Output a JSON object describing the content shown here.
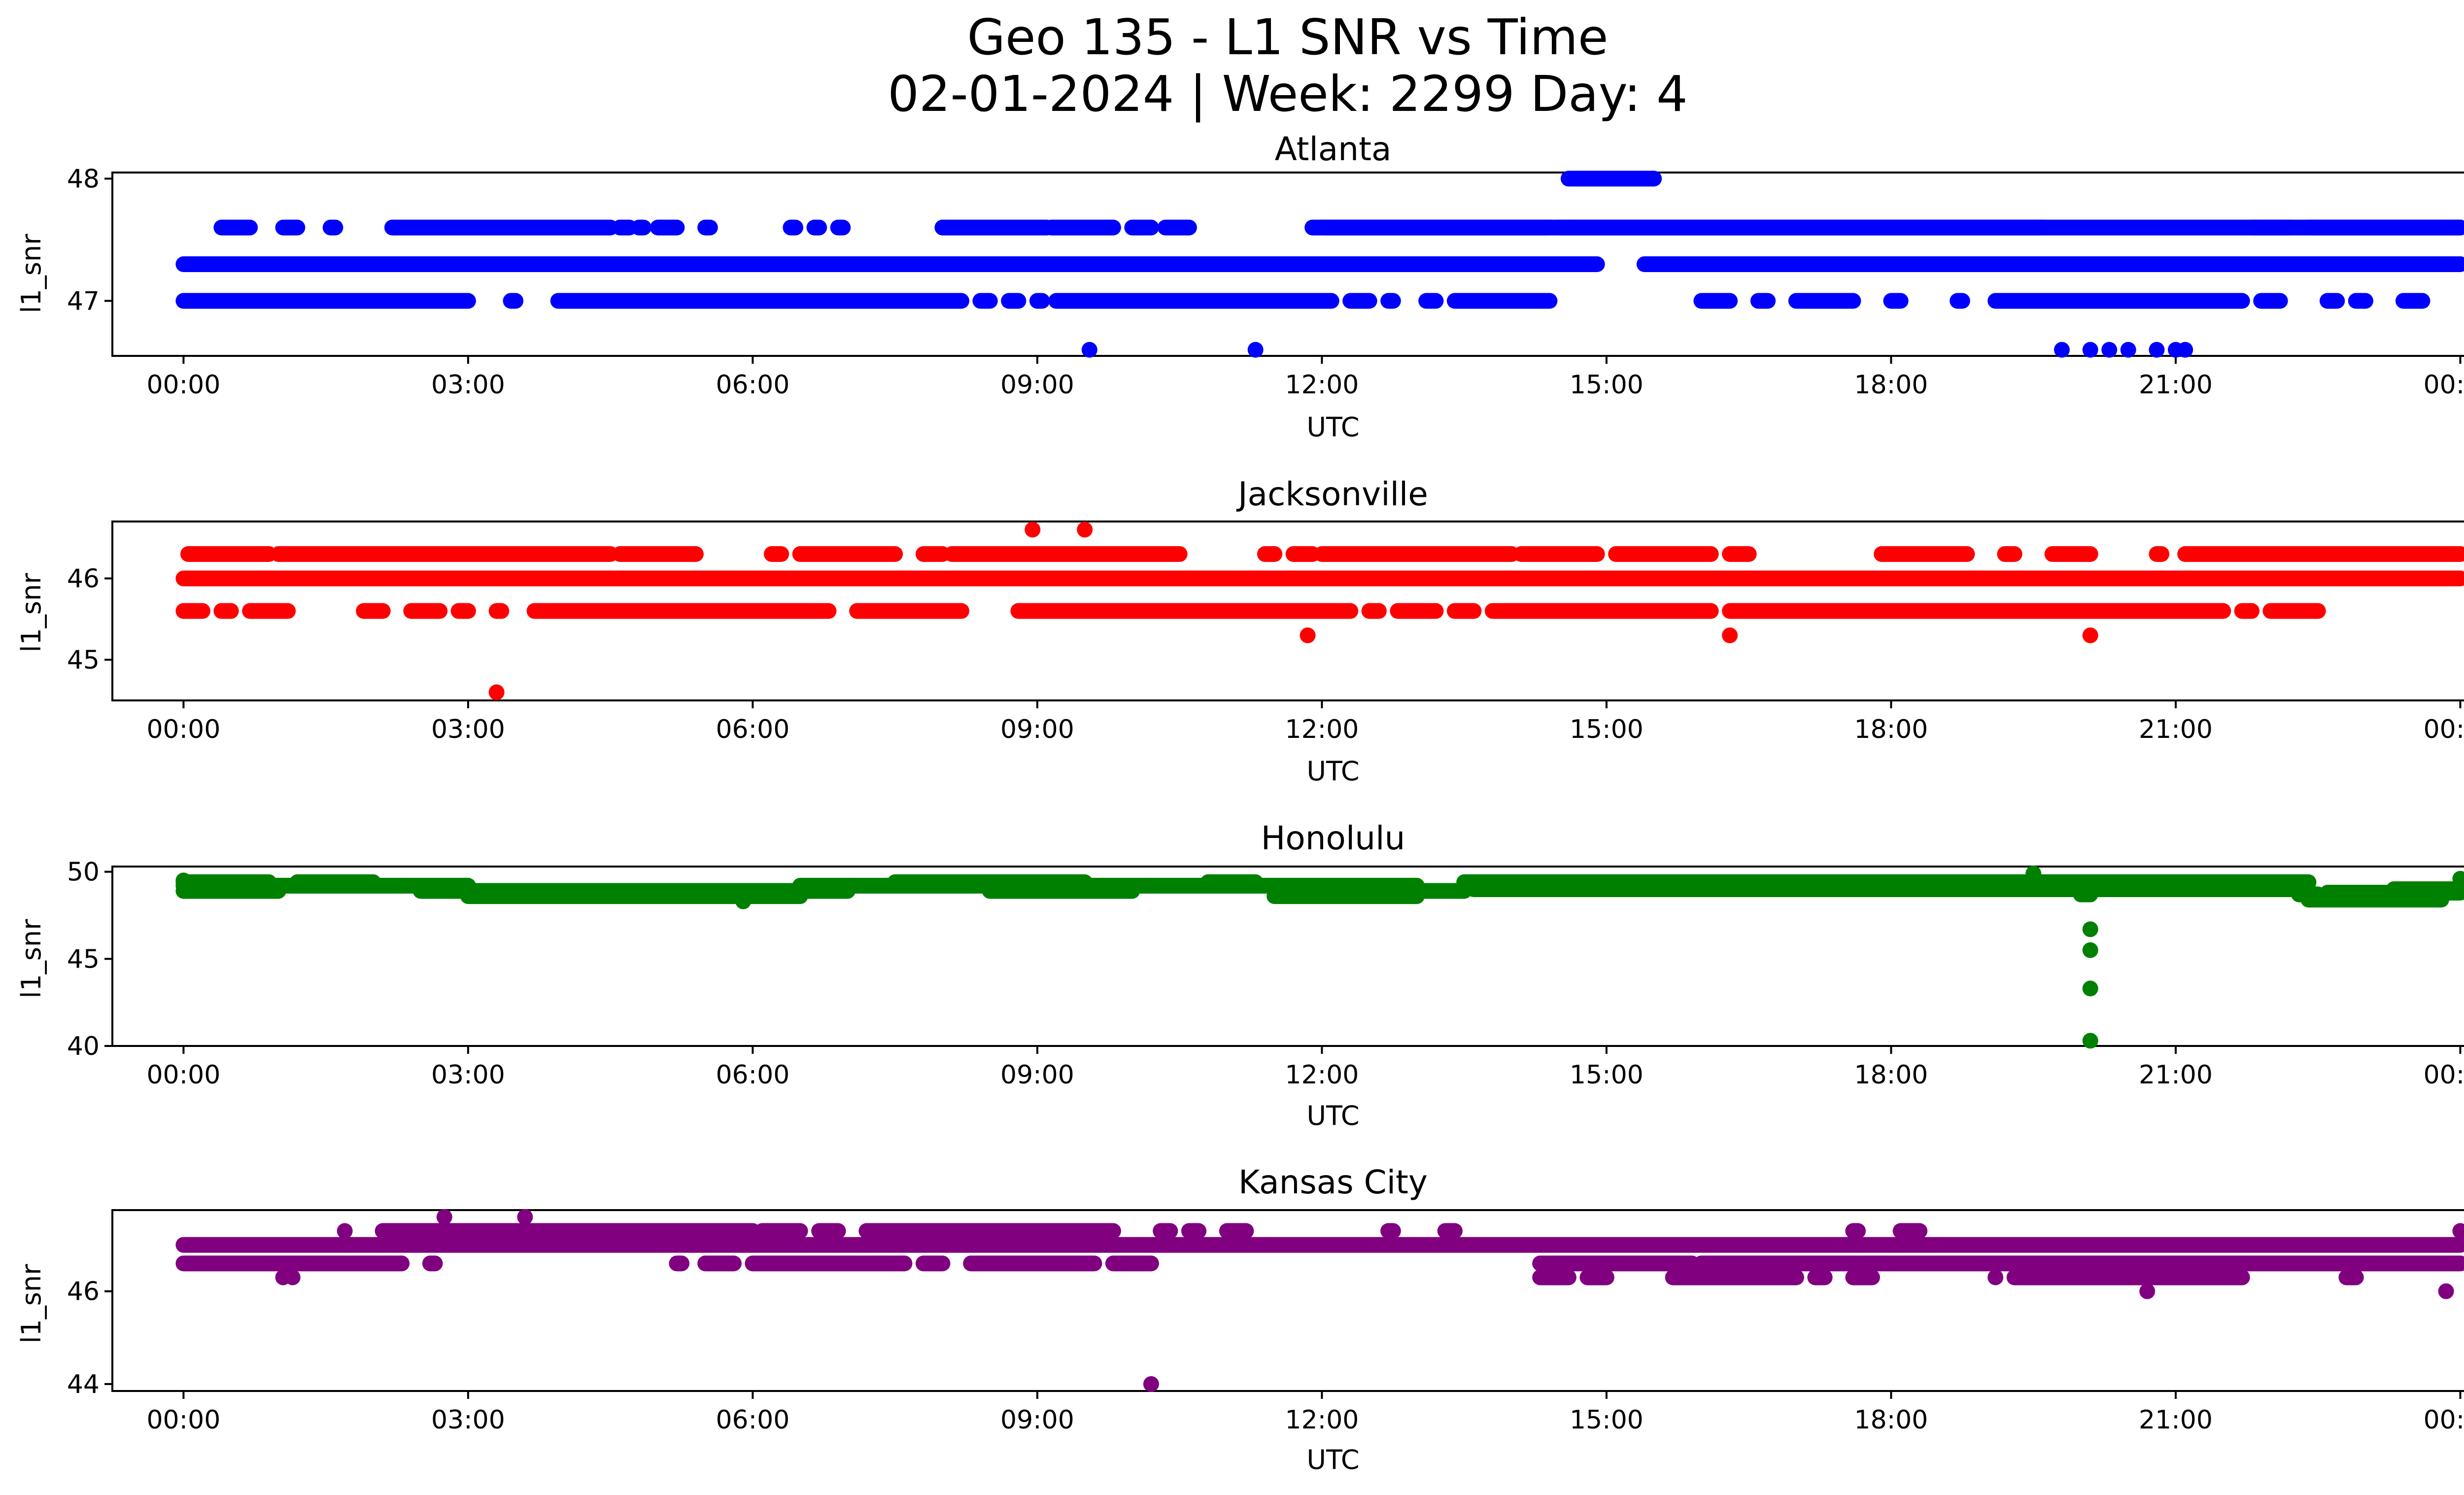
{
  "figure": {
    "title_line1": "Geo 135 - L1 SNR vs Time",
    "title_line2": "02-01-2024 | Week: 2299 Day: 4"
  },
  "chart_data": [
    {
      "type": "scatter",
      "title": "Atlanta",
      "xlabel": "UTC",
      "ylabel": "l1_snr",
      "color": "#0000ff",
      "xlim_hours": [
        -0.75,
        25.0
      ],
      "ylim": [
        46.55,
        48.05
      ],
      "x_ticks": [
        "00:00",
        "03:00",
        "06:00",
        "09:00",
        "12:00",
        "15:00",
        "18:00",
        "21:00",
        "00:00"
      ],
      "y_ticks": [
        47,
        48
      ],
      "bands": [
        {
          "y": 47.3,
          "segments": [
            [
              0.0,
              14.9
            ],
            [
              15.4,
              24.0
            ]
          ]
        },
        {
          "y": 47.6,
          "segments": [
            [
              0.4,
              0.7
            ],
            [
              1.05,
              1.2
            ],
            [
              1.55,
              1.6
            ],
            [
              2.2,
              4.5
            ],
            [
              4.6,
              4.7
            ],
            [
              4.8,
              4.85
            ],
            [
              5.0,
              5.2
            ],
            [
              5.5,
              5.55
            ],
            [
              6.4,
              6.45
            ],
            [
              6.65,
              6.7
            ],
            [
              6.9,
              6.95
            ],
            [
              8.0,
              9.1
            ],
            [
              9.15,
              9.8
            ],
            [
              10.0,
              10.2
            ],
            [
              10.35,
              10.6
            ],
            [
              11.9,
              24.0
            ]
          ]
        },
        {
          "y": 47.6,
          "segments": [
            [
              12.0,
              14.4
            ],
            [
              14.5,
              19.6
            ],
            [
              21.8,
              22.2
            ],
            [
              22.4,
              24.0
            ]
          ]
        },
        {
          "y": 47.0,
          "segments": [
            [
              0.0,
              3.0
            ],
            [
              3.45,
              3.5
            ],
            [
              3.95,
              8.2
            ],
            [
              8.4,
              8.5
            ],
            [
              8.7,
              8.8
            ],
            [
              9.0,
              9.05
            ],
            [
              9.2,
              12.1
            ],
            [
              12.3,
              12.5
            ],
            [
              12.7,
              12.75
            ],
            [
              13.1,
              13.2
            ],
            [
              13.4,
              14.4
            ],
            [
              16.0,
              16.3
            ],
            [
              16.6,
              16.7
            ],
            [
              17.0,
              17.6
            ],
            [
              18.0,
              18.1
            ],
            [
              18.7,
              18.75
            ],
            [
              19.1,
              21.7
            ],
            [
              21.9,
              22.1
            ],
            [
              22.6,
              22.7
            ],
            [
              22.9,
              23.0
            ],
            [
              23.4,
              23.6
            ]
          ]
        },
        {
          "y": 48.0,
          "segments": [
            [
              14.6,
              15.5
            ]
          ]
        }
      ],
      "points": [
        [
          9.55,
          46.6
        ],
        [
          11.3,
          46.6
        ],
        [
          19.8,
          46.6
        ],
        [
          20.1,
          46.6
        ],
        [
          20.3,
          46.6
        ],
        [
          20.5,
          46.6
        ],
        [
          20.8,
          46.6
        ],
        [
          21.0,
          46.6
        ],
        [
          21.1,
          46.6
        ]
      ]
    },
    {
      "type": "scatter",
      "title": "Jacksonville",
      "xlabel": "UTC",
      "ylabel": "l1_snr",
      "color": "#ff0000",
      "xlim_hours": [
        -0.75,
        25.0
      ],
      "ylim": [
        44.5,
        46.7
      ],
      "x_ticks": [
        "00:00",
        "03:00",
        "06:00",
        "09:00",
        "12:00",
        "15:00",
        "18:00",
        "21:00",
        "00:00"
      ],
      "y_ticks": [
        45,
        46
      ],
      "bands": [
        {
          "y": 46.0,
          "segments": [
            [
              0.0,
              24.0
            ]
          ]
        },
        {
          "y": 46.3,
          "segments": [
            [
              0.05,
              0.9
            ],
            [
              1.0,
              4.5
            ],
            [
              4.6,
              5.4
            ],
            [
              6.2,
              6.3
            ],
            [
              6.5,
              7.5
            ],
            [
              7.8,
              8.0
            ],
            [
              8.1,
              10.5
            ],
            [
              11.4,
              11.5
            ],
            [
              11.7,
              11.9
            ],
            [
              12.0,
              14.0
            ],
            [
              14.1,
              14.9
            ],
            [
              15.1,
              16.1
            ],
            [
              16.3,
              16.5
            ],
            [
              17.9,
              18.8
            ],
            [
              19.2,
              19.3
            ],
            [
              19.7,
              20.1
            ],
            [
              20.8,
              20.85
            ],
            [
              21.1,
              24.0
            ]
          ]
        },
        {
          "y": 45.6,
          "segments": [
            [
              0.0,
              0.2
            ],
            [
              0.4,
              0.5
            ],
            [
              0.7,
              1.1
            ],
            [
              1.9,
              2.1
            ],
            [
              2.4,
              2.7
            ],
            [
              2.9,
              3.0
            ],
            [
              3.3,
              3.35
            ],
            [
              3.7,
              6.8
            ],
            [
              7.1,
              8.2
            ],
            [
              8.8,
              12.3
            ],
            [
              12.5,
              12.6
            ],
            [
              12.8,
              13.2
            ],
            [
              13.4,
              13.6
            ],
            [
              13.8,
              16.1
            ],
            [
              16.3,
              21.5
            ],
            [
              21.7,
              21.8
            ],
            [
              22.0,
              22.5
            ]
          ]
        }
      ],
      "points": [
        [
          3.3,
          44.6
        ],
        [
          8.95,
          46.6
        ],
        [
          9.5,
          46.6
        ],
        [
          11.85,
          45.3
        ],
        [
          16.3,
          45.3
        ],
        [
          20.1,
          45.3
        ]
      ]
    },
    {
      "type": "scatter",
      "title": "Honolulu",
      "xlabel": "UTC",
      "ylabel": "l1_snr",
      "color": "#008000",
      "xlim_hours": [
        -0.75,
        25.0
      ],
      "ylim": [
        40.0,
        50.3
      ],
      "x_ticks": [
        "00:00",
        "03:00",
        "06:00",
        "09:00",
        "12:00",
        "15:00",
        "18:00",
        "21:00",
        "00:00"
      ],
      "y_ticks": [
        40,
        45,
        50
      ],
      "bands": [
        {
          "y": 49.2,
          "segments": [
            [
              0.0,
              3.0
            ],
            [
              6.5,
              13.0
            ],
            [
              13.5,
              14.5
            ]
          ]
        },
        {
          "y": 48.9,
          "segments": [
            [
              0.0,
              1.0
            ],
            [
              2.5,
              7.0
            ],
            [
              8.5,
              10.0
            ],
            [
              11.5,
              13.5
            ]
          ]
        },
        {
          "y": 48.6,
          "segments": [
            [
              3.0,
              6.5
            ],
            [
              11.5,
              13.0
            ]
          ]
        },
        {
          "y": 49.4,
          "segments": [
            [
              0.0,
              0.9
            ],
            [
              1.2,
              2.0
            ],
            [
              7.5,
              9.5
            ],
            [
              10.8,
              11.3
            ],
            [
              13.5,
              22.4
            ]
          ]
        },
        {
          "y": 49.0,
          "segments": [
            [
              13.6,
              22.4
            ],
            [
              23.3,
              24.0
            ]
          ]
        },
        {
          "y": 48.7,
          "segments": [
            [
              20.0,
              20.1
            ],
            [
              22.3,
              22.5
            ],
            [
              22.7,
              22.8
            ]
          ]
        },
        {
          "y": 48.4,
          "segments": [
            [
              22.4,
              23.8
            ]
          ]
        },
        {
          "y": 48.8,
          "segments": [
            [
              22.6,
              24.0
            ]
          ]
        }
      ],
      "points": [
        [
          19.5,
          49.9
        ],
        [
          20.1,
          46.7
        ],
        [
          20.1,
          45.5
        ],
        [
          20.1,
          43.3
        ],
        [
          20.1,
          40.3
        ],
        [
          5.9,
          48.3
        ],
        [
          0.0,
          49.5
        ],
        [
          24.0,
          49.6
        ]
      ]
    },
    {
      "type": "scatter",
      "title": "Kansas City",
      "xlabel": "UTC",
      "ylabel": "l1_snr",
      "color": "#800080",
      "xlim_hours": [
        -0.75,
        25.0
      ],
      "ylim": [
        43.85,
        47.75
      ],
      "x_ticks": [
        "00:00",
        "03:00",
        "06:00",
        "09:00",
        "12:00",
        "15:00",
        "18:00",
        "21:00",
        "00:00"
      ],
      "y_ticks": [
        44,
        46
      ],
      "bands": [
        {
          "y": 47.0,
          "segments": [
            [
              0.0,
              24.0
            ]
          ]
        },
        {
          "y": 46.6,
          "segments": [
            [
              0.0,
              2.3
            ],
            [
              2.6,
              2.65
            ],
            [
              5.2,
              5.25
            ],
            [
              5.5,
              5.8
            ],
            [
              6.0,
              7.6
            ],
            [
              7.8,
              8.0
            ],
            [
              8.3,
              9.6
            ],
            [
              9.8,
              10.2
            ],
            [
              14.3,
              15.9
            ],
            [
              16.0,
              24.0
            ]
          ]
        },
        {
          "y": 47.3,
          "segments": [
            [
              2.1,
              6.0
            ],
            [
              6.1,
              6.5
            ],
            [
              6.7,
              6.9
            ],
            [
              7.2,
              9.8
            ],
            [
              10.3,
              10.4
            ],
            [
              10.6,
              10.7
            ],
            [
              11.0,
              11.2
            ],
            [
              12.7,
              12.75
            ],
            [
              13.3,
              13.4
            ],
            [
              17.6,
              17.65
            ],
            [
              18.1,
              18.3
            ]
          ]
        },
        {
          "y": 46.3,
          "segments": [
            [
              14.3,
              14.6
            ],
            [
              14.8,
              15.0
            ],
            [
              15.7,
              17.0
            ],
            [
              17.2,
              17.3
            ],
            [
              17.6,
              17.8
            ],
            [
              19.3,
              21.7
            ],
            [
              22.8,
              22.9
            ]
          ]
        }
      ],
      "points": [
        [
          1.05,
          46.3
        ],
        [
          1.15,
          46.3
        ],
        [
          1.7,
          47.3
        ],
        [
          2.75,
          47.6
        ],
        [
          3.6,
          47.6
        ],
        [
          10.2,
          44.0
        ],
        [
          20.7,
          46.0
        ],
        [
          23.85,
          46.0
        ],
        [
          24.0,
          47.3
        ],
        [
          19.1,
          46.3
        ]
      ]
    }
  ]
}
